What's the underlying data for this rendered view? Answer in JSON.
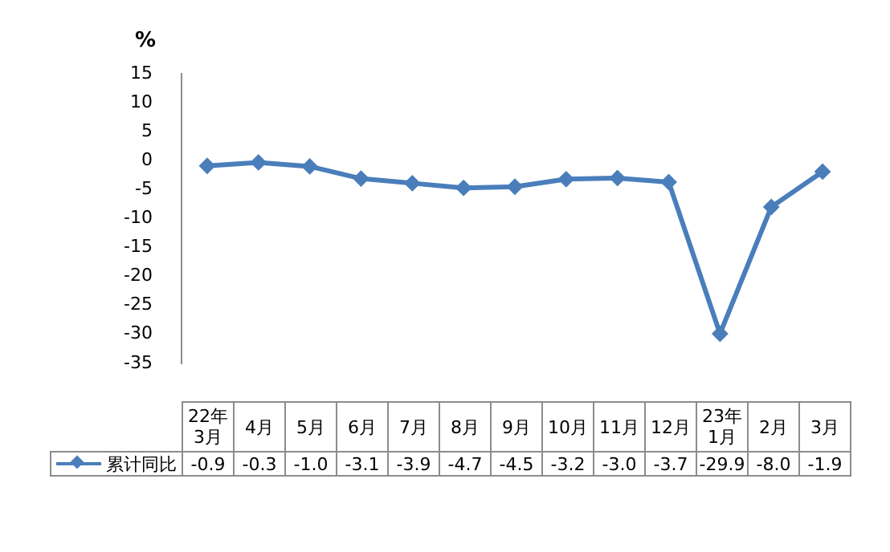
{
  "chart_data": {
    "type": "line",
    "ylabel": "%",
    "categories": [
      "22年3月",
      "4月",
      "5月",
      "6月",
      "7月",
      "8月",
      "9月",
      "10月",
      "11月",
      "12月",
      "23年1月",
      "2月",
      "3月"
    ],
    "series": [
      {
        "name": "累计同比",
        "color": "#4a7ebb",
        "values": [
          -0.9,
          -0.3,
          -1.0,
          -3.1,
          -3.9,
          -4.7,
          -4.5,
          -3.2,
          -3.0,
          -3.7,
          -29.9,
          -8.0,
          -1.9
        ],
        "value_labels": [
          "-0.9",
          "-0.3",
          "-1.0",
          "-3.1",
          "-3.9",
          "-4.7",
          "-4.5",
          "-3.2",
          "-3.0",
          "-3.7",
          "-29.9",
          "-8.0",
          "-1.9"
        ]
      }
    ],
    "ylim": [
      -35,
      15
    ],
    "yticks": [
      15,
      10,
      5,
      0,
      -5,
      -10,
      -15,
      -20,
      -25,
      -30,
      -35
    ],
    "legend": "bottom",
    "marker": "diamond"
  }
}
